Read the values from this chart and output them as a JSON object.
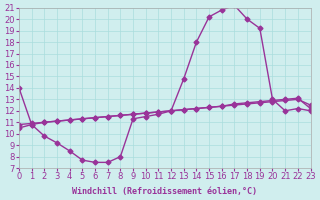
{
  "xlabel": "Windchill (Refroidissement éolien,°C)",
  "background_color": "#d0eeee",
  "line_color": "#993399",
  "xlim": [
    0,
    23
  ],
  "ylim": [
    7,
    21
  ],
  "xticks": [
    0,
    1,
    2,
    3,
    4,
    5,
    6,
    7,
    8,
    9,
    10,
    11,
    12,
    13,
    14,
    15,
    16,
    17,
    18,
    19,
    20,
    21,
    22,
    23
  ],
  "yticks": [
    7,
    8,
    9,
    10,
    11,
    12,
    13,
    14,
    15,
    16,
    17,
    18,
    19,
    20,
    21
  ],
  "curve1_x": [
    0,
    1,
    2,
    3,
    4,
    5,
    6,
    7,
    8,
    9,
    10,
    11,
    12,
    13,
    14,
    15,
    16,
    17,
    18,
    19,
    20,
    21,
    22,
    23
  ],
  "curve1_y": [
    14.0,
    10.8,
    9.8,
    9.2,
    8.5,
    7.7,
    7.5,
    7.5,
    8.0,
    11.3,
    11.5,
    11.7,
    12.0,
    14.8,
    18.0,
    20.2,
    20.8,
    21.2,
    20.0,
    19.2,
    13.0,
    12.0,
    12.2,
    12.0
  ],
  "curve2_x": [
    0,
    1,
    2,
    3,
    4,
    5,
    6,
    7,
    8,
    9,
    10,
    11,
    12,
    13,
    14,
    15,
    16,
    17,
    18,
    19,
    20,
    21,
    22,
    23
  ],
  "curve2_y": [
    10.5,
    10.8,
    11.0,
    11.1,
    11.2,
    11.3,
    11.4,
    11.5,
    11.6,
    11.7,
    11.8,
    11.9,
    12.0,
    12.1,
    12.2,
    12.3,
    12.4,
    12.6,
    12.7,
    12.8,
    12.9,
    13.0,
    13.1,
    12.2
  ],
  "curve3_x": [
    0,
    1,
    2,
    3,
    4,
    5,
    6,
    7,
    8,
    9,
    10,
    11,
    12,
    13,
    14,
    15,
    16,
    17,
    18,
    19,
    20,
    21,
    22,
    23
  ],
  "curve3_y": [
    10.8,
    10.9,
    11.0,
    11.1,
    11.2,
    11.3,
    11.4,
    11.5,
    11.6,
    11.7,
    11.8,
    11.9,
    12.0,
    12.1,
    12.2,
    12.3,
    12.4,
    12.5,
    12.6,
    12.7,
    12.8,
    12.9,
    13.0,
    12.5
  ],
  "marker": "D",
  "markersize": 2.5,
  "linewidth": 1.0,
  "fontsize_ticks": 6,
  "fontsize_xlabel": 6
}
